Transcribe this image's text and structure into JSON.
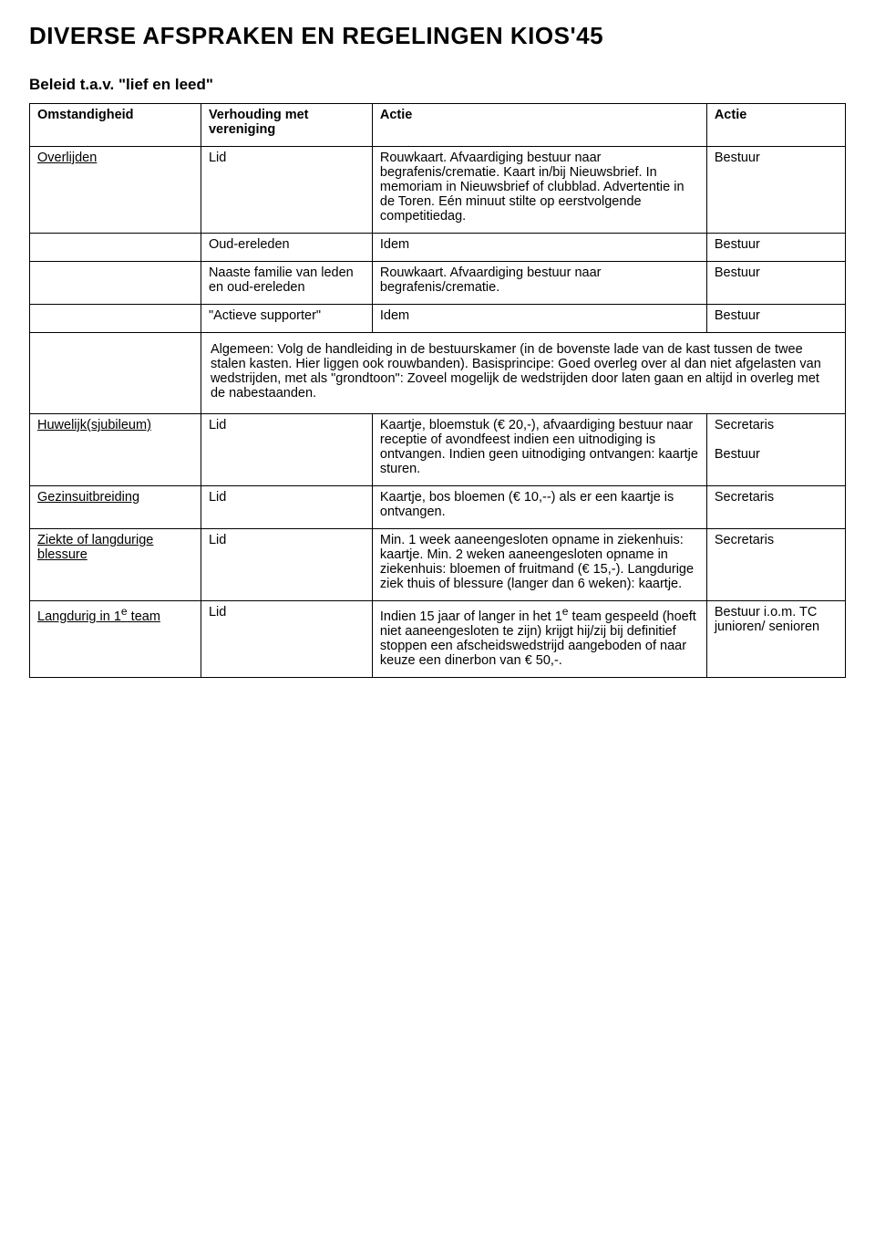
{
  "title": "DIVERSE AFSPRAKEN EN REGELINGEN KIOS'45",
  "subtitle": "Beleid t.a.v. \"lief en leed\"",
  "headers": {
    "c1": "Omstandigheid",
    "c2": "Verhouding met vereniging",
    "c3": "Actie",
    "c4": "Actie"
  },
  "rows": {
    "r1": {
      "c1": "Overlijden",
      "c2": "Lid",
      "c3": "Rouwkaart. Afvaardiging bestuur naar begrafenis/crematie. Kaart in/bij Nieuwsbrief. In memoriam in Nieuwsbrief of clubblad. Advertentie in de Toren. Eén minuut stilte op eerstvolgende competitiedag.",
      "c4": "Bestuur"
    },
    "r2": {
      "c2": "Oud-ereleden",
      "c3": "Idem",
      "c4": "Bestuur"
    },
    "r3": {
      "c2": "Naaste familie van leden en oud-ereleden",
      "c3": "Rouwkaart. Afvaardiging bestuur naar begrafenis/crematie.",
      "c4": "Bestuur"
    },
    "r4": {
      "c2": "\"Actieve supporter\"",
      "c3": "Idem",
      "c4": "Bestuur"
    },
    "r5": {
      "merged": "Algemeen: Volg de handleiding in de bestuurskamer (in de bovenste lade van de kast tussen de twee stalen kasten. Hier liggen ook rouwbanden). Basisprincipe: Goed overleg over al dan niet afgelasten van wedstrijden, met als \"grondtoon\": Zoveel mogelijk de wedstrijden door laten gaan en altijd in overleg met de nabestaanden."
    },
    "r6": {
      "c1": "Huwelijk(sjubileum)",
      "c2": "Lid",
      "c3": "Kaartje, bloemstuk (€ 20,-), afvaardiging bestuur naar receptie of avondfeest indien een uitnodiging is ontvangen. Indien geen uitnodiging ontvangen: kaartje sturen.",
      "c4a": "Secretaris",
      "c4b": "Bestuur"
    },
    "r7": {
      "c1": "Gezinsuitbreiding",
      "c2": "Lid",
      "c3": "Kaartje, bos bloemen (€ 10,--) als er een kaartje is ontvangen.",
      "c4": "Secretaris"
    },
    "r8": {
      "c1": "Ziekte of langdurige blessure",
      "c2": "Lid",
      "c3": "Min. 1 week aaneengesloten opname in ziekenhuis: kaartje. Min. 2 weken aaneengesloten opname in ziekenhuis: bloemen of fruitmand (€ 15,-). Langdurige ziek thuis of blessure (langer dan 6 weken): kaartje.",
      "c4": "Secretaris"
    },
    "r9": {
      "c1_a": "Langdurig in 1",
      "c1_sup": "e",
      "c1_b": " team",
      "c2": "Lid",
      "c3_a": "Indien 15 jaar of langer in het 1",
      "c3_sup": "e",
      "c3_b": " team gespeeld (hoeft niet aaneengesloten te zijn) krijgt hij/zij bij definitief stoppen een afscheidswedstrijd aangeboden of naar keuze een dinerbon van € 50,-.",
      "c4": "Bestuur i.o.m. TC junioren/ senioren"
    }
  }
}
